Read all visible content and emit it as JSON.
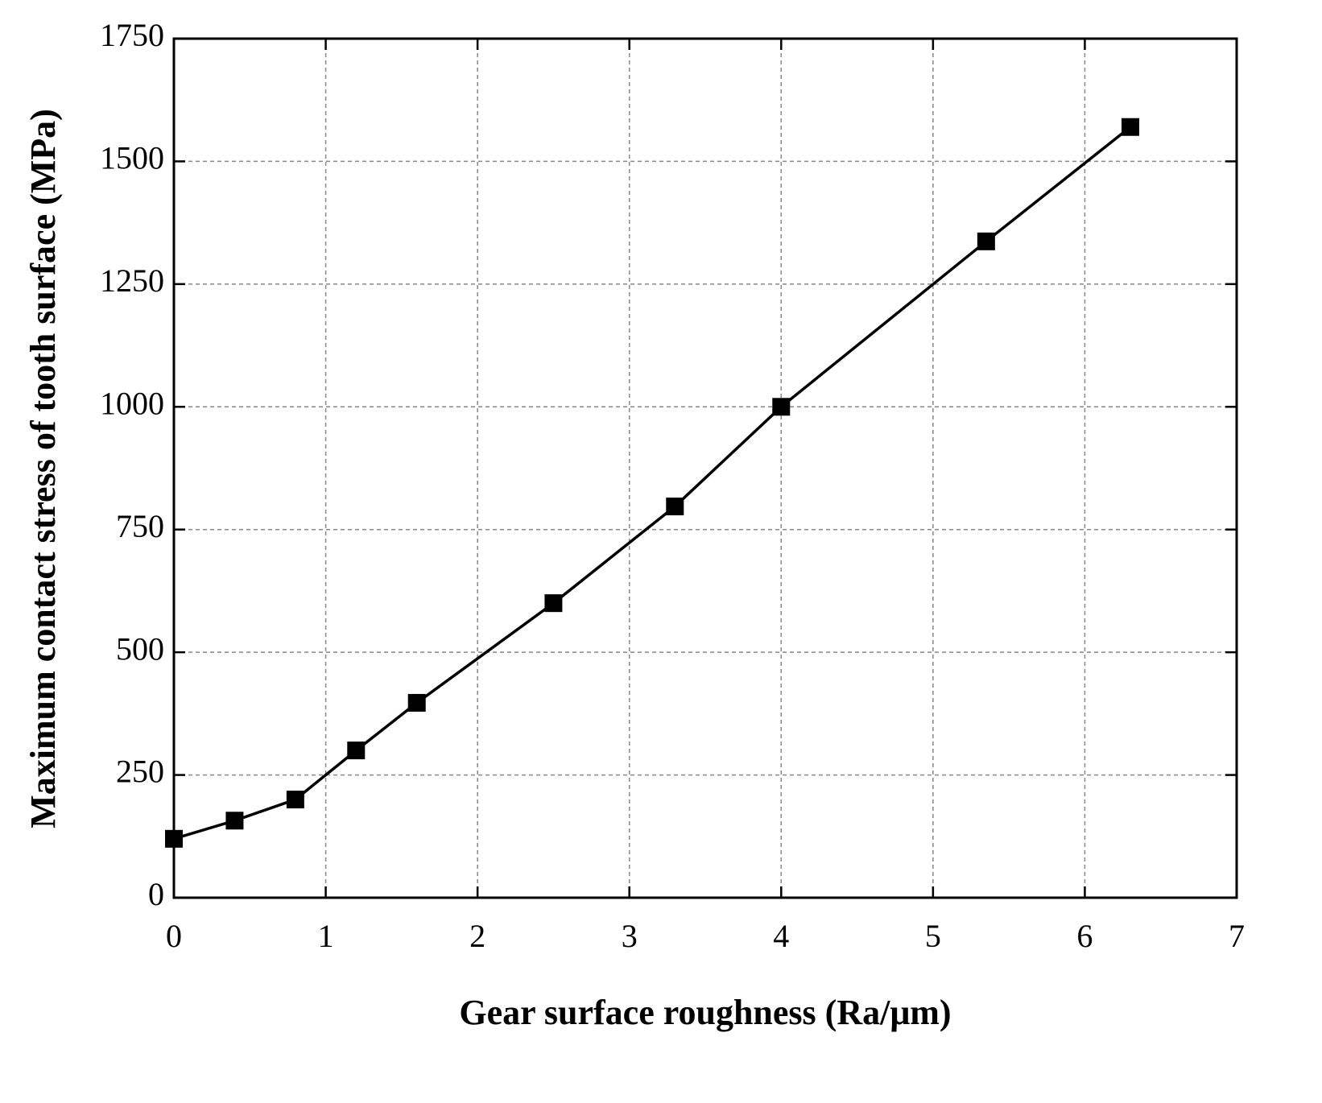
{
  "chart_data": {
    "type": "line",
    "xlabel": "Gear surface roughness (Ra/μm)",
    "ylabel": "Maximum contact stress of tooth surface (MPa)",
    "x": [
      0,
      0.4,
      0.8,
      1.2,
      1.6,
      2.5,
      3.3,
      4,
      5.35,
      6.3
    ],
    "series": [
      {
        "color": "#000000",
        "values": [
          120,
          157,
          200,
          300,
          397,
          600,
          797,
          1000,
          1337,
          1570
        ]
      }
    ],
    "xlim": [
      0,
      7
    ],
    "xticks": [
      0,
      1,
      2,
      3,
      4,
      5,
      6,
      7
    ],
    "ylim": [
      0,
      1750
    ],
    "yticks": [
      0,
      250,
      500,
      750,
      1000,
      1250,
      1500,
      1750
    ],
    "grid": true,
    "marker": "square"
  }
}
